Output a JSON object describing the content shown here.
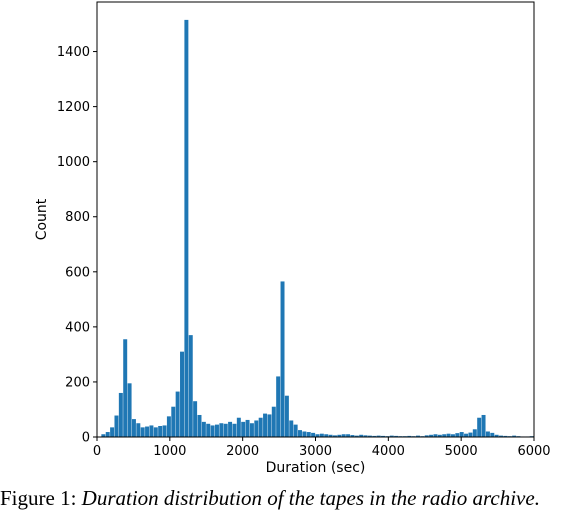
{
  "chart_data": {
    "type": "bar",
    "title": "",
    "xlabel": "Duration (sec)",
    "ylabel": "Count",
    "xlim": [
      0,
      6000
    ],
    "ylim": [
      0,
      1580
    ],
    "xticks": [
      0,
      1000,
      2000,
      3000,
      4000,
      5000,
      6000
    ],
    "yticks": [
      0,
      200,
      400,
      600,
      800,
      1000,
      1200,
      1400
    ],
    "grid": false,
    "color": "#1f77b4",
    "bin_width": 60,
    "x": [
      60,
      120,
      180,
      240,
      300,
      360,
      420,
      480,
      540,
      600,
      660,
      720,
      780,
      840,
      900,
      960,
      1020,
      1080,
      1140,
      1200,
      1260,
      1320,
      1380,
      1440,
      1500,
      1560,
      1620,
      1680,
      1740,
      1800,
      1860,
      1920,
      1980,
      2040,
      2100,
      2160,
      2220,
      2280,
      2340,
      2400,
      2460,
      2520,
      2580,
      2640,
      2700,
      2760,
      2820,
      2880,
      2940,
      3000,
      3060,
      3120,
      3180,
      3240,
      3300,
      3360,
      3420,
      3480,
      3540,
      3600,
      3660,
      3720,
      3780,
      3840,
      3900,
      3960,
      4020,
      4080,
      4140,
      4200,
      4260,
      4320,
      4380,
      4440,
      4500,
      4560,
      4620,
      4680,
      4740,
      4800,
      4860,
      4920,
      4980,
      5040,
      5100,
      5160,
      5220,
      5280,
      5340,
      5400,
      5460,
      5520,
      5580,
      5640,
      5700,
      5760,
      5820,
      5880,
      5940
    ],
    "values": [
      10,
      18,
      35,
      78,
      160,
      355,
      195,
      65,
      50,
      35,
      38,
      42,
      35,
      40,
      42,
      75,
      110,
      165,
      310,
      1515,
      370,
      130,
      80,
      55,
      48,
      42,
      45,
      50,
      48,
      55,
      48,
      70,
      55,
      62,
      50,
      60,
      70,
      85,
      82,
      110,
      220,
      565,
      150,
      60,
      45,
      25,
      20,
      18,
      15,
      10,
      12,
      10,
      8,
      6,
      8,
      10,
      10,
      7,
      5,
      8,
      6,
      5,
      4,
      5,
      4,
      3,
      5,
      4,
      3,
      3,
      4,
      3,
      5,
      3,
      6,
      8,
      10,
      8,
      10,
      12,
      10,
      14,
      18,
      12,
      16,
      28,
      70,
      80,
      20,
      15,
      8,
      5,
      4,
      3,
      5,
      3,
      2,
      2,
      3
    ]
  },
  "caption": {
    "prefix": "Figure 1: ",
    "text": "Duration distribution of the tapes in the radio archive."
  }
}
